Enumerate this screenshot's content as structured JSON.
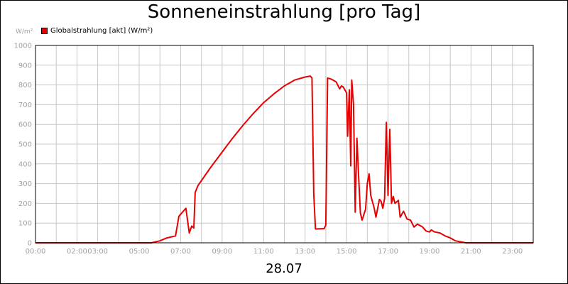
{
  "chart_data": {
    "type": "line",
    "title": "Sonneneinstrahlung [pro Tag]",
    "ylabel": "W/m²",
    "xlabel": "28.07",
    "ylim": [
      0,
      1000
    ],
    "xlim": [
      "00:00",
      "24:00"
    ],
    "grid": true,
    "legend_position": "top-left",
    "y_ticks": [
      "0",
      "100",
      "200",
      "300",
      "400",
      "500",
      "600",
      "700",
      "800",
      "900",
      "1000"
    ],
    "x_ticks": [
      {
        "t": "00:00",
        "label": "00:00"
      },
      {
        "t": "02:00",
        "label": "02:00"
      },
      {
        "t": "03:00",
        "label": "03:00"
      },
      {
        "t": "05:00",
        "label": "05:00"
      },
      {
        "t": "07:00",
        "label": "07:00"
      },
      {
        "t": "09:00",
        "label": "09:00"
      },
      {
        "t": "11:00",
        "label": "11:00"
      },
      {
        "t": "13:00",
        "label": "13:00"
      },
      {
        "t": "15:00",
        "label": "15:00"
      },
      {
        "t": "17:00",
        "label": "17:00"
      },
      {
        "t": "19:00",
        "label": "19:00"
      },
      {
        "t": "21:00",
        "label": "21:00"
      },
      {
        "t": "23:00",
        "label": "23:00"
      }
    ],
    "series": [
      {
        "name": "Globalstrahlung [akt] (W/m²)",
        "color": "#e60000",
        "points": [
          [
            "00:00",
            0
          ],
          [
            "05:35",
            0
          ],
          [
            "06:00",
            10
          ],
          [
            "06:20",
            25
          ],
          [
            "06:45",
            35
          ],
          [
            "06:55",
            135
          ],
          [
            "07:15",
            175
          ],
          [
            "07:25",
            50
          ],
          [
            "07:32",
            85
          ],
          [
            "07:38",
            75
          ],
          [
            "07:42",
            255
          ],
          [
            "07:50",
            290
          ],
          [
            "08:10",
            340
          ],
          [
            "08:30",
            390
          ],
          [
            "09:00",
            460
          ],
          [
            "09:30",
            530
          ],
          [
            "10:00",
            595
          ],
          [
            "10:30",
            655
          ],
          [
            "11:00",
            710
          ],
          [
            "11:30",
            755
          ],
          [
            "12:00",
            795
          ],
          [
            "12:30",
            825
          ],
          [
            "13:00",
            840
          ],
          [
            "13:15",
            845
          ],
          [
            "13:20",
            835
          ],
          [
            "13:25",
            250
          ],
          [
            "13:30",
            70
          ],
          [
            "13:55",
            72
          ],
          [
            "14:00",
            90
          ],
          [
            "14:05",
            835
          ],
          [
            "14:15",
            830
          ],
          [
            "14:30",
            815
          ],
          [
            "14:40",
            780
          ],
          [
            "14:45",
            795
          ],
          [
            "14:50",
            790
          ],
          [
            "14:55",
            775
          ],
          [
            "15:00",
            760
          ],
          [
            "15:03",
            540
          ],
          [
            "15:08",
            775
          ],
          [
            "15:12",
            390
          ],
          [
            "15:15",
            825
          ],
          [
            "15:20",
            700
          ],
          [
            "15:25",
            155
          ],
          [
            "15:30",
            530
          ],
          [
            "15:35",
            330
          ],
          [
            "15:40",
            150
          ],
          [
            "15:45",
            115
          ],
          [
            "15:55",
            170
          ],
          [
            "16:00",
            300
          ],
          [
            "16:05",
            350
          ],
          [
            "16:10",
            240
          ],
          [
            "16:20",
            175
          ],
          [
            "16:25",
            130
          ],
          [
            "16:35",
            220
          ],
          [
            "16:40",
            210
          ],
          [
            "16:45",
            175
          ],
          [
            "16:50",
            225
          ],
          [
            "16:55",
            610
          ],
          [
            "17:00",
            240
          ],
          [
            "17:05",
            575
          ],
          [
            "17:10",
            200
          ],
          [
            "17:15",
            235
          ],
          [
            "17:20",
            200
          ],
          [
            "17:30",
            215
          ],
          [
            "17:35",
            130
          ],
          [
            "17:45",
            160
          ],
          [
            "17:55",
            120
          ],
          [
            "18:05",
            115
          ],
          [
            "18:15",
            80
          ],
          [
            "18:25",
            95
          ],
          [
            "18:40",
            80
          ],
          [
            "18:50",
            60
          ],
          [
            "19:00",
            55
          ],
          [
            "19:05",
            65
          ],
          [
            "19:15",
            55
          ],
          [
            "19:30",
            50
          ],
          [
            "19:45",
            35
          ],
          [
            "20:00",
            25
          ],
          [
            "20:15",
            10
          ],
          [
            "20:30",
            5
          ],
          [
            "20:45",
            0
          ],
          [
            "24:00",
            0
          ]
        ]
      }
    ]
  }
}
